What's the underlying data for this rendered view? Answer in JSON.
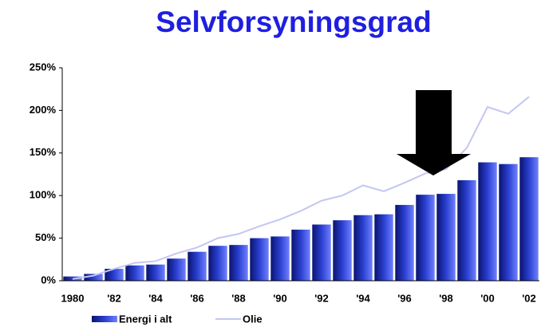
{
  "chart_data": {
    "type": "bar",
    "title": "Selvforsyningsgrad",
    "categories": [
      "1980",
      null,
      "'82",
      null,
      "'84",
      null,
      "'86",
      null,
      "'88",
      null,
      "'90",
      null,
      "'92",
      null,
      "'94",
      null,
      "'96",
      null,
      "'98",
      null,
      "'00",
      null,
      "'02"
    ],
    "series": [
      {
        "name": "Energi i alt",
        "type": "bar",
        "color": "#2a3fd0",
        "values": [
          5,
          8,
          14,
          18,
          19,
          26,
          34,
          41,
          42,
          50,
          52,
          60,
          66,
          71,
          77,
          78,
          89,
          101,
          102,
          118,
          139,
          137,
          145
        ]
      },
      {
        "name": "Olie",
        "type": "line",
        "color": "#c4c6f2",
        "values": [
          2,
          6,
          14,
          21,
          23,
          32,
          39,
          50,
          55,
          64,
          72,
          82,
          94,
          100,
          112,
          105,
          115,
          126,
          131,
          156,
          204,
          196,
          216
        ]
      }
    ],
    "ylim": [
      0,
      250
    ],
    "yticks": [
      {
        "value": 0,
        "label": "0%"
      },
      {
        "value": 50,
        "label": "50%"
      },
      {
        "value": 100,
        "label": "100%"
      },
      {
        "value": 150,
        "label": "150%"
      },
      {
        "value": 200,
        "label": "200%"
      },
      {
        "value": 250,
        "label": "250%"
      }
    ],
    "grid": false
  }
}
